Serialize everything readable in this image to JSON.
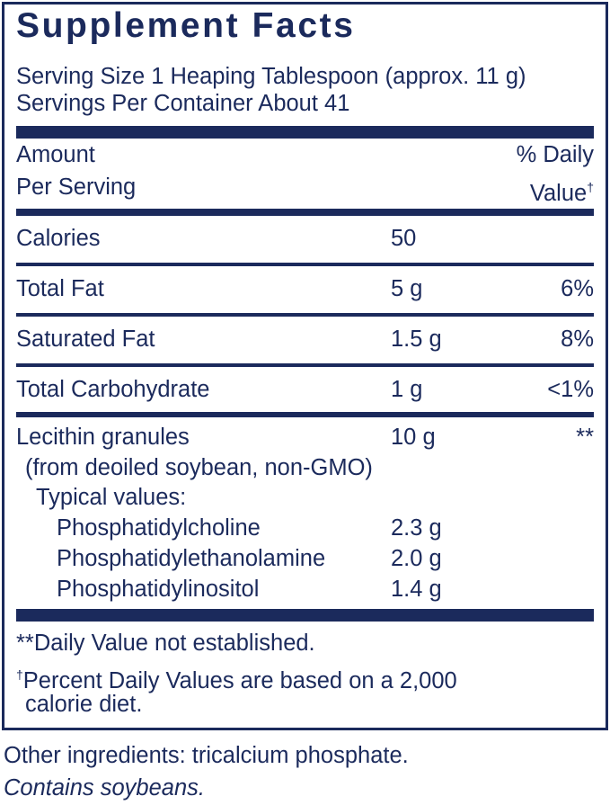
{
  "title": "Supplement Facts",
  "serving_size": "Serving Size 1 Heaping Tablespoon (approx. 11 g)",
  "servings_per_container": "Servings Per Container About 41",
  "header": {
    "amount": [
      "Amount",
      "Per Serving"
    ],
    "daily_value": [
      "% Daily",
      "Value"
    ],
    "dagger": "†"
  },
  "rows": [
    {
      "name": "Calories",
      "amount": "50"
    },
    {
      "name": "Total Fat",
      "amount": "5 g",
      "daily_value": "6%"
    },
    {
      "name": "Saturated Fat",
      "amount": "1.5 g",
      "daily_value": "8%"
    },
    {
      "name": "Total Carbohydrate",
      "amount": "1 g",
      "daily_value": "<1%"
    }
  ],
  "lecithin": {
    "name": "Lecithin granules",
    "amount": "10 g",
    "daily_value": "**",
    "source": "(from deoiled soybean, non-GMO)",
    "typical": "Typical values:",
    "components": [
      {
        "name": "Phosphatidylcholine",
        "amount": "2.3 g"
      },
      {
        "name": "Phosphatidylethanolamine",
        "amount": "2.0 g"
      },
      {
        "name": "Phosphatidylinositol",
        "amount": "1.4 g"
      }
    ]
  },
  "footnotes": {
    "not_established": "**Daily Value not established.",
    "dagger": "†",
    "percent_lines": [
      "Percent Daily Values are based on a 2,000",
      "calorie diet."
    ]
  },
  "other_ingredients": "Other ingredients: tricalcium phosphate.",
  "allergen": "Contains soybeans."
}
